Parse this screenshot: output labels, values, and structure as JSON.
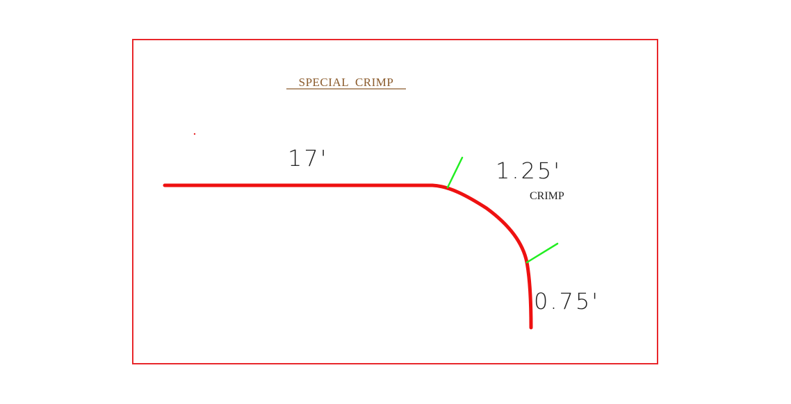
{
  "diagram": {
    "title": "SPECIAL  CRIMP",
    "segments": [
      {
        "length_label": "17'"
      },
      {
        "length_label": "1.25'",
        "note": "CRIMP"
      },
      {
        "length_label": "0.75'"
      }
    ]
  },
  "colors": {
    "frame": "#e8262a",
    "profile": "#ee1111",
    "tick": "#22ee22",
    "title": "#8a5a2b",
    "text": "#222222",
    "stray_dot": "#e8262a"
  }
}
